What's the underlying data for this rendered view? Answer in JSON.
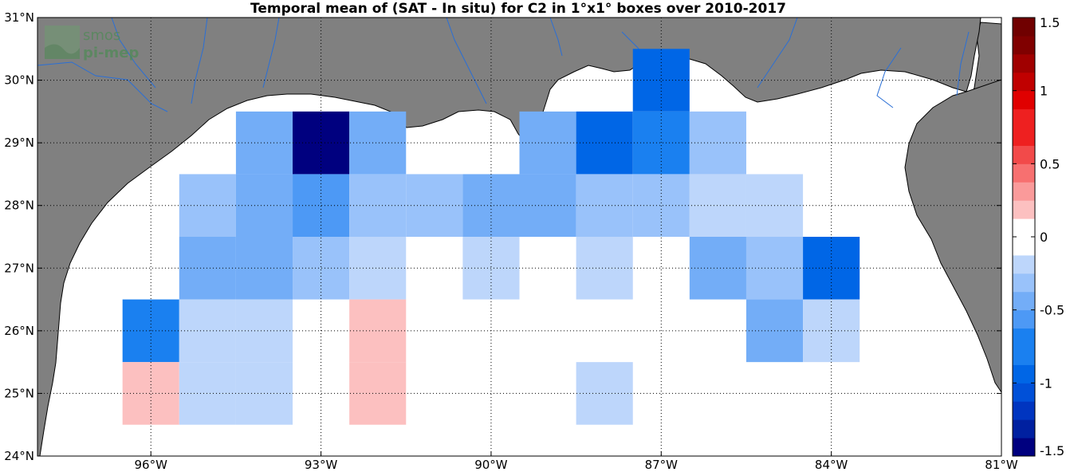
{
  "title": "Temporal mean of (SAT - In situ) for C2 in 1°x1° boxes over 2010-2017",
  "logo": {
    "line1": "smos",
    "line2": "pi-mep"
  },
  "axes": {
    "lon_ticks": [
      {
        "value": -96,
        "label": "96°W"
      },
      {
        "value": -93,
        "label": "93°W"
      },
      {
        "value": -90,
        "label": "90°W"
      },
      {
        "value": -87,
        "label": "87°W"
      },
      {
        "value": -84,
        "label": "84°W"
      },
      {
        "value": -81,
        "label": "81°W"
      }
    ],
    "lat_ticks": [
      {
        "value": 24,
        "label": "24°N"
      },
      {
        "value": 25,
        "label": "25°N"
      },
      {
        "value": 26,
        "label": "26°N"
      },
      {
        "value": 27,
        "label": "27°N"
      },
      {
        "value": 28,
        "label": "28°N"
      },
      {
        "value": 29,
        "label": "29°N"
      },
      {
        "value": 30,
        "label": "30°N"
      },
      {
        "value": 31,
        "label": "31°N"
      }
    ],
    "lon_range": [
      -98,
      -81
    ],
    "lat_range": [
      24,
      31
    ]
  },
  "colorbar": {
    "range": [
      -1.5,
      1.5
    ],
    "ticks": [
      {
        "value": 1.5,
        "label": "1.5"
      },
      {
        "value": 1,
        "label": "1"
      },
      {
        "value": 0.5,
        "label": "0.5"
      },
      {
        "value": 0,
        "label": "0"
      },
      {
        "value": -0.5,
        "label": "-0.5"
      },
      {
        "value": -1,
        "label": "-1"
      },
      {
        "value": -1.5,
        "label": "-1.5"
      }
    ]
  },
  "colors": {
    "land": "#808080",
    "ocean": "#ffffff",
    "rivers": "#2a6fd6"
  },
  "chart_data": {
    "type": "heatmap",
    "grid": "1°x1° boxes",
    "cells": [
      {
        "lon": -96,
        "lat": 26,
        "value": -0.75
      },
      {
        "lon": -96,
        "lat": 25,
        "value": 0.1
      },
      {
        "lon": -95,
        "lat": 28,
        "value": -0.25
      },
      {
        "lon": -95,
        "lat": 27,
        "value": -0.45
      },
      {
        "lon": -95,
        "lat": 26,
        "value": -0.1
      },
      {
        "lon": -95,
        "lat": 25,
        "value": -0.1
      },
      {
        "lon": -94,
        "lat": 29,
        "value": -0.5
      },
      {
        "lon": -94,
        "lat": 28,
        "value": -0.4
      },
      {
        "lon": -94,
        "lat": 27,
        "value": -0.4
      },
      {
        "lon": -94,
        "lat": 26,
        "value": -0.1
      },
      {
        "lon": -94,
        "lat": 25,
        "value": -0.1
      },
      {
        "lon": -93,
        "lat": 29,
        "value": -1.5
      },
      {
        "lon": -93,
        "lat": 28,
        "value": -0.55
      },
      {
        "lon": -93,
        "lat": 27,
        "value": -0.3
      },
      {
        "lon": -92,
        "lat": 29,
        "value": -0.5
      },
      {
        "lon": -92,
        "lat": 28,
        "value": -0.25
      },
      {
        "lon": -92,
        "lat": 27,
        "value": -0.15
      },
      {
        "lon": -92,
        "lat": 26,
        "value": 0.1
      },
      {
        "lon": -92,
        "lat": 25,
        "value": 0.1
      },
      {
        "lon": -91,
        "lat": 28,
        "value": -0.25
      },
      {
        "lon": -90,
        "lat": 28,
        "value": -0.4
      },
      {
        "lon": -90,
        "lat": 27,
        "value": -0.15
      },
      {
        "lon": -89,
        "lat": 29,
        "value": -0.4
      },
      {
        "lon": -89,
        "lat": 28,
        "value": -0.5
      },
      {
        "lon": -88,
        "lat": 29,
        "value": -0.85
      },
      {
        "lon": -88,
        "lat": 28,
        "value": -0.3
      },
      {
        "lon": -88,
        "lat": 27,
        "value": -0.15
      },
      {
        "lon": -88,
        "lat": 25,
        "value": -0.15
      },
      {
        "lon": -87,
        "lat": 30,
        "value": -0.85
      },
      {
        "lon": -87,
        "lat": 29,
        "value": -0.75
      },
      {
        "lon": -87,
        "lat": 28,
        "value": -0.3
      },
      {
        "lon": -86,
        "lat": 29,
        "value": -0.35
      },
      {
        "lon": -86,
        "lat": 28,
        "value": -0.1
      },
      {
        "lon": -86,
        "lat": 27,
        "value": -0.4
      },
      {
        "lon": -85,
        "lat": 28,
        "value": -0.1
      },
      {
        "lon": -85,
        "lat": 27,
        "value": -0.3
      },
      {
        "lon": -85,
        "lat": 26,
        "value": -0.4
      },
      {
        "lon": -84,
        "lat": 27,
        "value": -0.85
      },
      {
        "lon": -84,
        "lat": 26,
        "value": -0.15
      }
    ]
  }
}
